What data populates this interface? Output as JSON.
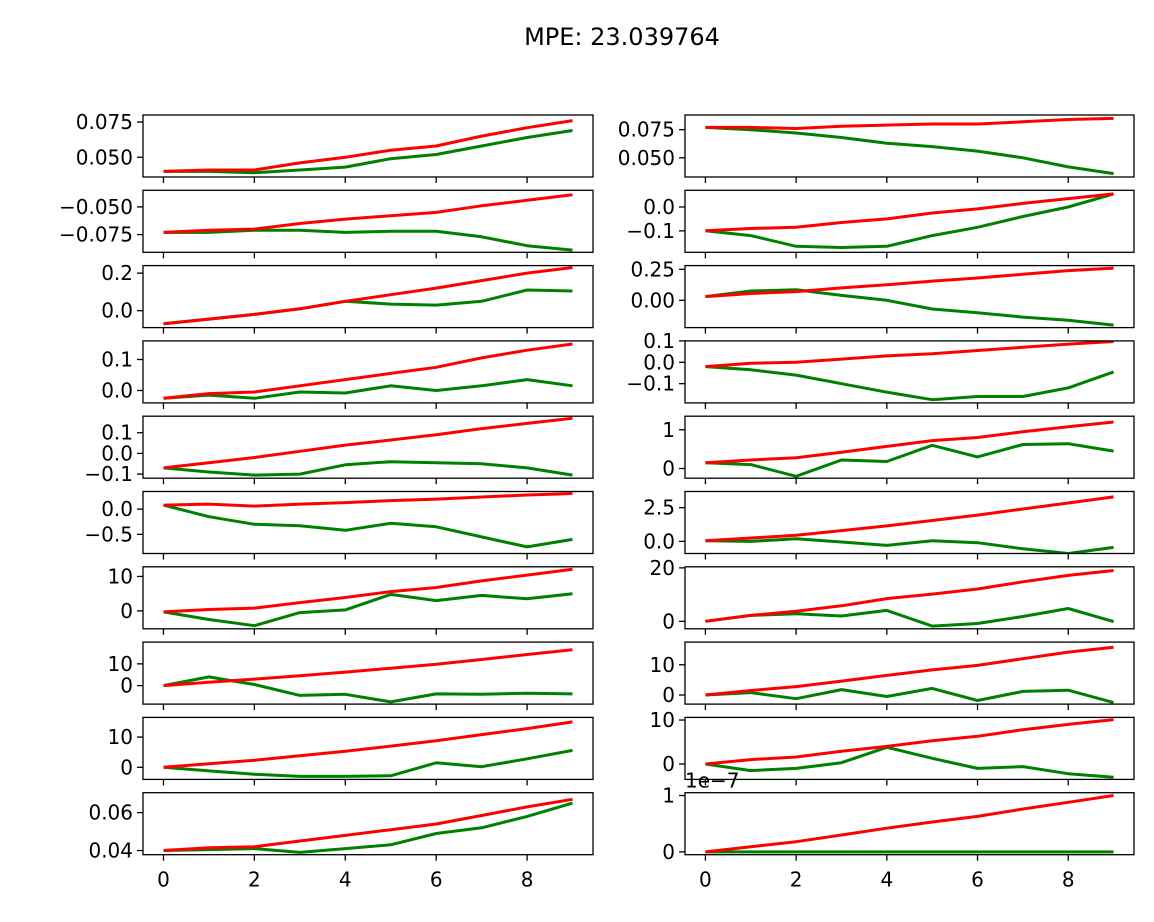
{
  "chart_data": {
    "type": "line",
    "title": "MPE: 23.039764",
    "x": [
      0,
      1,
      2,
      3,
      4,
      5,
      6,
      7,
      8,
      9
    ],
    "xticks": [
      0,
      2,
      4,
      6,
      8
    ],
    "xticklabels": [
      "0",
      "2",
      "4",
      "6",
      "8"
    ],
    "xlim": [
      -0.45,
      9.45
    ],
    "grid": false,
    "colors": {
      "red": "#ff0000",
      "green": "#008000"
    },
    "panels": [
      {
        "id": "r0c0",
        "ylim": [
          0.036,
          0.08
        ],
        "yticks": [
          0.05,
          0.075
        ],
        "yticklabels": [
          "0.050",
          "0.075"
        ],
        "red": [
          0.04,
          0.041,
          0.041,
          0.046,
          0.05,
          0.055,
          0.058,
          0.065,
          0.071,
          0.076
        ],
        "green": [
          0.04,
          0.04,
          0.039,
          0.041,
          0.043,
          0.049,
          0.052,
          0.058,
          0.064,
          0.069
        ]
      },
      {
        "id": "r0c1",
        "ylim": [
          0.033,
          0.088
        ],
        "yticks": [
          0.05,
          0.075
        ],
        "yticklabels": [
          "0.050",
          "0.075"
        ],
        "red": [
          0.077,
          0.077,
          0.076,
          0.078,
          0.079,
          0.08,
          0.08,
          0.082,
          0.084,
          0.085
        ],
        "green": [
          0.077,
          0.075,
          0.072,
          0.068,
          0.063,
          0.06,
          0.056,
          0.05,
          0.042,
          0.036
        ]
      },
      {
        "id": "r1c0",
        "ylim": [
          -0.091,
          -0.035
        ],
        "yticks": [
          -0.05,
          -0.075
        ],
        "yticklabels": [
          "−0.050",
          "−0.075"
        ],
        "red": [
          -0.073,
          -0.071,
          -0.07,
          -0.065,
          -0.061,
          -0.058,
          -0.055,
          -0.049,
          -0.044,
          -0.039
        ],
        "green": [
          -0.073,
          -0.073,
          -0.071,
          -0.071,
          -0.073,
          -0.072,
          -0.072,
          -0.077,
          -0.085,
          -0.089
        ]
      },
      {
        "id": "r1c1",
        "ylim": [
          -0.19,
          0.07
        ],
        "yticks": [
          0.0,
          -0.1
        ],
        "yticklabels": [
          "0.0",
          "−0.1"
        ],
        "red": [
          -0.1,
          -0.09,
          -0.085,
          -0.065,
          -0.05,
          -0.025,
          -0.008,
          0.015,
          0.035,
          0.055
        ],
        "green": [
          -0.1,
          -0.12,
          -0.165,
          -0.17,
          -0.165,
          -0.12,
          -0.085,
          -0.04,
          0.0,
          0.055
        ]
      },
      {
        "id": "r2c0",
        "ylim": [
          -0.09,
          0.24
        ],
        "yticks": [
          0.2,
          0.0
        ],
        "yticklabels": [
          "0.2",
          "0.0"
        ],
        "red": [
          -0.07,
          -0.045,
          -0.02,
          0.01,
          0.05,
          0.085,
          0.12,
          0.16,
          0.2,
          0.23
        ],
        "green": [
          -0.07,
          -0.045,
          -0.02,
          0.01,
          0.05,
          0.035,
          0.03,
          0.05,
          0.11,
          0.105
        ]
      },
      {
        "id": "r2c1",
        "ylim": [
          -0.22,
          0.28
        ],
        "yticks": [
          0.25,
          0.0
        ],
        "yticklabels": [
          "0.25",
          "0.00"
        ],
        "red": [
          0.03,
          0.055,
          0.07,
          0.1,
          0.125,
          0.155,
          0.18,
          0.21,
          0.24,
          0.26
        ],
        "green": [
          0.03,
          0.075,
          0.085,
          0.04,
          0.0,
          -0.07,
          -0.1,
          -0.135,
          -0.16,
          -0.2
        ]
      },
      {
        "id": "r3c0",
        "ylim": [
          -0.04,
          0.16
        ],
        "yticks": [
          0.1,
          0.0
        ],
        "yticklabels": [
          "0.1",
          "0.0"
        ],
        "red": [
          -0.025,
          -0.01,
          -0.005,
          0.015,
          0.035,
          0.055,
          0.075,
          0.105,
          0.13,
          0.15
        ],
        "green": [
          -0.025,
          -0.015,
          -0.025,
          -0.005,
          -0.008,
          0.015,
          0.0,
          0.015,
          0.035,
          0.015
        ]
      },
      {
        "id": "r3c1",
        "ylim": [
          -0.19,
          0.1
        ],
        "yticks": [
          0.1,
          0.0,
          -0.1
        ],
        "yticklabels": [
          "0.1",
          "0.0",
          "−0.1"
        ],
        "red": [
          -0.02,
          -0.005,
          0.0,
          0.015,
          0.03,
          0.04,
          0.055,
          0.07,
          0.085,
          0.097
        ],
        "green": [
          -0.02,
          -0.035,
          -0.06,
          -0.1,
          -0.14,
          -0.175,
          -0.16,
          -0.16,
          -0.12,
          -0.045
        ]
      },
      {
        "id": "r4c0",
        "ylim": [
          -0.12,
          0.18
        ],
        "yticks": [
          0.1,
          0.0,
          -0.1
        ],
        "yticklabels": [
          "0.1",
          "0.0",
          "−0.1"
        ],
        "red": [
          -0.07,
          -0.045,
          -0.02,
          0.01,
          0.04,
          0.065,
          0.09,
          0.12,
          0.145,
          0.17
        ],
        "green": [
          -0.07,
          -0.09,
          -0.105,
          -0.1,
          -0.055,
          -0.04,
          -0.045,
          -0.05,
          -0.07,
          -0.105
        ]
      },
      {
        "id": "r4c1",
        "ylim": [
          -0.25,
          1.35
        ],
        "yticks": [
          1.0,
          0.0
        ],
        "yticklabels": [
          "1",
          "0"
        ],
        "red": [
          0.15,
          0.22,
          0.28,
          0.42,
          0.57,
          0.72,
          0.8,
          0.95,
          1.08,
          1.2
        ],
        "green": [
          0.15,
          0.1,
          -0.2,
          0.22,
          0.18,
          0.6,
          0.3,
          0.62,
          0.64,
          0.45
        ]
      },
      {
        "id": "r5c0",
        "ylim": [
          -0.88,
          0.35
        ],
        "yticks": [
          0.0,
          -0.5
        ],
        "yticklabels": [
          "0.0",
          "−0.5"
        ],
        "red": [
          0.08,
          0.1,
          0.06,
          0.1,
          0.13,
          0.17,
          0.2,
          0.24,
          0.28,
          0.31
        ],
        "green": [
          0.08,
          -0.15,
          -0.3,
          -0.33,
          -0.42,
          -0.28,
          -0.35,
          -0.55,
          -0.75,
          -0.6
        ]
      },
      {
        "id": "r5c1",
        "ylim": [
          -0.9,
          3.7
        ],
        "yticks": [
          2.5,
          0.0
        ],
        "yticklabels": [
          "2.5",
          "0.0"
        ],
        "red": [
          0.05,
          0.25,
          0.45,
          0.8,
          1.15,
          1.55,
          1.95,
          2.4,
          2.85,
          3.3
        ],
        "green": [
          0.05,
          0.0,
          0.2,
          -0.05,
          -0.3,
          0.05,
          -0.1,
          -0.55,
          -0.9,
          -0.45
        ]
      },
      {
        "id": "r6c0",
        "ylim": [
          -5.2,
          12.8
        ],
        "yticks": [
          10.0,
          0.0
        ],
        "yticklabels": [
          "10",
          "0"
        ],
        "red": [
          -0.3,
          0.4,
          0.8,
          2.4,
          3.9,
          5.6,
          6.8,
          8.7,
          10.4,
          12.1
        ],
        "green": [
          -0.3,
          -2.5,
          -4.3,
          -0.5,
          0.3,
          4.8,
          3.0,
          4.5,
          3.5,
          5.0
        ]
      },
      {
        "id": "r6c1",
        "ylim": [
          -2.8,
          20.4
        ],
        "yticks": [
          20.0,
          0.0
        ],
        "yticklabels": [
          "20",
          "0"
        ],
        "red": [
          0.0,
          2.2,
          3.8,
          5.8,
          8.5,
          10.2,
          12.1,
          14.8,
          17.2,
          19.0
        ],
        "green": [
          0.0,
          2.2,
          2.8,
          2.0,
          4.1,
          -1.8,
          -0.8,
          1.8,
          4.8,
          -0.1
        ]
      },
      {
        "id": "r7c0",
        "ylim": [
          -8.5,
          20.0
        ],
        "yticks": [
          10.0,
          0.0
        ],
        "yticklabels": [
          "10",
          "0"
        ],
        "red": [
          0.0,
          1.5,
          3.0,
          4.5,
          6.2,
          8.0,
          9.8,
          12.0,
          14.3,
          16.5
        ],
        "green": [
          0.0,
          4.0,
          0.5,
          -4.5,
          -4.0,
          -7.5,
          -3.8,
          -4.0,
          -3.5,
          -3.8
        ]
      },
      {
        "id": "r7c1",
        "ylim": [
          -3.0,
          17.5
        ],
        "yticks": [
          10.0,
          0.0
        ],
        "yticklabels": [
          "10",
          "0"
        ],
        "red": [
          0.0,
          1.5,
          2.8,
          4.6,
          6.5,
          8.3,
          9.8,
          12.0,
          14.2,
          15.8
        ],
        "green": [
          0.0,
          0.8,
          -1.2,
          1.8,
          -0.5,
          2.2,
          -1.8,
          1.2,
          1.6,
          -2.5
        ]
      },
      {
        "id": "r8c0",
        "ylim": [
          -4.0,
          16.5
        ],
        "yticks": [
          10.0,
          0.0
        ],
        "yticklabels": [
          "10",
          "0"
        ],
        "red": [
          0.0,
          1.2,
          2.3,
          3.8,
          5.3,
          7.0,
          8.8,
          10.8,
          12.8,
          15.0
        ],
        "green": [
          0.0,
          -1.2,
          -2.3,
          -3.0,
          -3.0,
          -2.8,
          1.5,
          0.2,
          2.8,
          5.6
        ]
      },
      {
        "id": "r8c1",
        "ylim": [
          -3.5,
          10.6
        ],
        "yticks": [
          10.0,
          0.0
        ],
        "yticklabels": [
          "10",
          "0"
        ],
        "red": [
          0.0,
          1.0,
          1.6,
          2.9,
          4.0,
          5.3,
          6.3,
          7.8,
          9.0,
          10.1
        ],
        "green": [
          0.0,
          -1.5,
          -1.0,
          0.3,
          3.8,
          1.3,
          -1.0,
          -0.6,
          -2.2,
          -3.0
        ]
      },
      {
        "id": "r9c0",
        "ylim": [
          0.0378,
          0.0705
        ],
        "yticks": [
          0.06,
          0.04
        ],
        "yticklabels": [
          "0.06",
          "0.04"
        ],
        "red": [
          0.04,
          0.0415,
          0.042,
          0.045,
          0.048,
          0.051,
          0.054,
          0.0585,
          0.063,
          0.067
        ],
        "green": [
          0.04,
          0.0405,
          0.041,
          0.039,
          0.041,
          0.043,
          0.049,
          0.052,
          0.058,
          0.065
        ]
      },
      {
        "id": "r9c1",
        "ylim": [
          -0.05,
          1.05
        ],
        "yticks": [
          1.0,
          0.0
        ],
        "yticklabels": [
          "1",
          "0"
        ],
        "offset": "1e−7",
        "red": [
          0.0,
          0.09,
          0.18,
          0.3,
          0.42,
          0.53,
          0.63,
          0.76,
          0.88,
          1.0
        ],
        "green": [
          0.0,
          0.0,
          0.0,
          0.0,
          0.0,
          0.0,
          0.0,
          0.0,
          0.0,
          0.0
        ]
      }
    ]
  }
}
